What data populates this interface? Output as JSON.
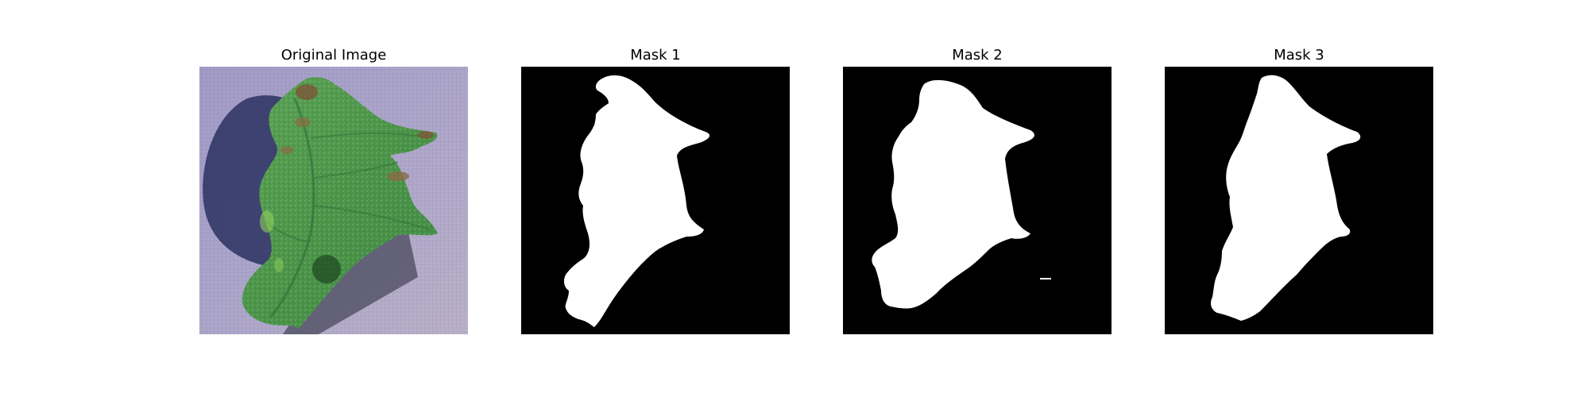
{
  "figure": {
    "panels": [
      {
        "title": "Original Image",
        "kind": "photo"
      },
      {
        "title": "Mask 1",
        "kind": "mask"
      },
      {
        "title": "Mask 2",
        "kind": "mask"
      },
      {
        "title": "Mask 3",
        "kind": "mask"
      }
    ],
    "colors": {
      "background": "#ffffff",
      "mask_foreground": "#ffffff",
      "mask_background": "#000000",
      "photo_ground": "#a49ec4",
      "leaf_green": "#4f9a4c",
      "leaf_dark_green": "#2f6c38",
      "shadow": "#2a2f5a",
      "leaf_brown": "#7a5a3a"
    }
  }
}
